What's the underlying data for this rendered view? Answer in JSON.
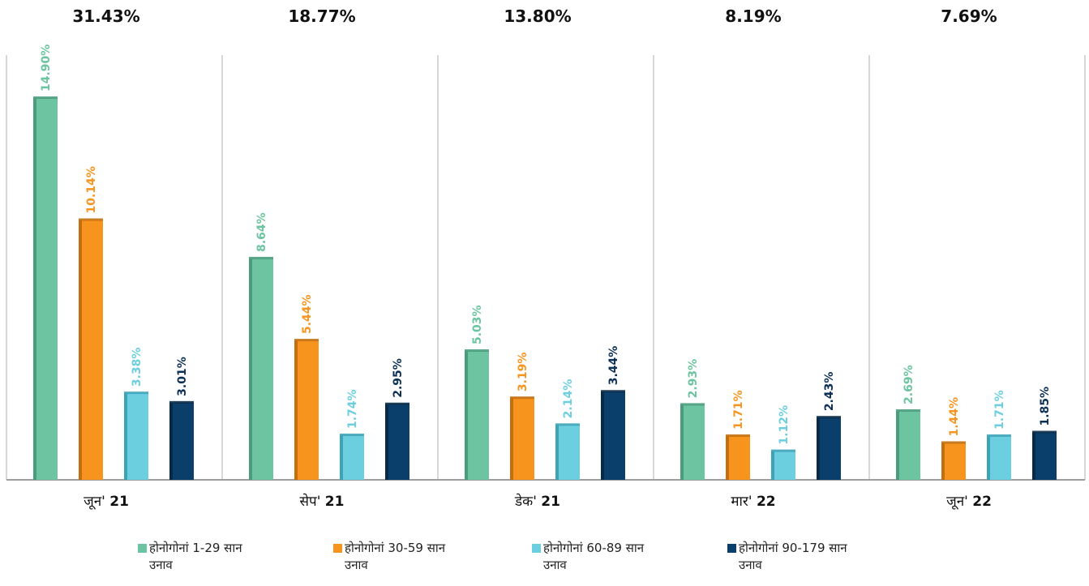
{
  "chart_data": {
    "type": "bar",
    "categories": [
      "जून' 21",
      "सेप' 21",
      "डेक' 21",
      "मार' 22",
      "जून' 22"
    ],
    "category_parts": [
      {
        "month": "जून'",
        "year": "21"
      },
      {
        "month": "सेप'",
        "year": "21"
      },
      {
        "month": "डेक'",
        "year": "21"
      },
      {
        "month": "मार'",
        "year": "22"
      },
      {
        "month": "जून'",
        "year": "22"
      }
    ],
    "group_totals": [
      "31.43%",
      "18.77%",
      "13.80%",
      "8.19%",
      "7.69%"
    ],
    "series": [
      {
        "name": "होनोगोनां 1-29 सान उनाव",
        "color": "#6cc4a0",
        "dark": "#4a9c7c",
        "values": [
          14.9,
          8.64,
          5.03,
          2.93,
          2.69
        ],
        "labels": [
          "14.90%",
          "8.64%",
          "5.03%",
          "2.93%",
          "2.69%"
        ]
      },
      {
        "name": "होनोगोनां 30-59 सान उनाव",
        "color": "#f7941d",
        "dark": "#c46f0f",
        "values": [
          10.14,
          5.44,
          3.19,
          1.71,
          1.44
        ],
        "labels": [
          "10.14%",
          "5.44%",
          "3.19%",
          "1.71%",
          "1.44%"
        ]
      },
      {
        "name": "होनोगोनां 60-89 सान उनाव",
        "color": "#6ccfe0",
        "dark": "#3fa3b8",
        "values": [
          3.38,
          1.74,
          2.14,
          1.12,
          1.71
        ],
        "labels": [
          "3.38%",
          "1.74%",
          "2.14%",
          "1.12%",
          "1.71%"
        ]
      },
      {
        "name": "होनोगोनां 90-179 सान उनाव",
        "color": "#0b3f6b",
        "dark": "#072a48",
        "values": [
          3.01,
          2.95,
          3.44,
          2.43,
          1.85
        ],
        "labels": [
          "3.01%",
          "2.95%",
          "3.44%",
          "2.43%",
          "1.85%"
        ]
      }
    ],
    "ylim": [
      0,
      16
    ],
    "legend_position": "bottom",
    "grid": false
  },
  "legend": [
    {
      "line1": "होनोगोनां  1-29 सान",
      "line2": "उनाव",
      "color": "#6cc4a0"
    },
    {
      "line1": "होनोगोनां  30-59 सान",
      "line2": "उनाव",
      "color": "#f7941d"
    },
    {
      "line1": "होनोगोनां  60-89 सान",
      "line2": "उनाव",
      "color": "#6ccfe0"
    },
    {
      "line1": "होनोगोनां  90-179 सान",
      "line2": "उनाव",
      "color": "#0b3f6b"
    }
  ]
}
